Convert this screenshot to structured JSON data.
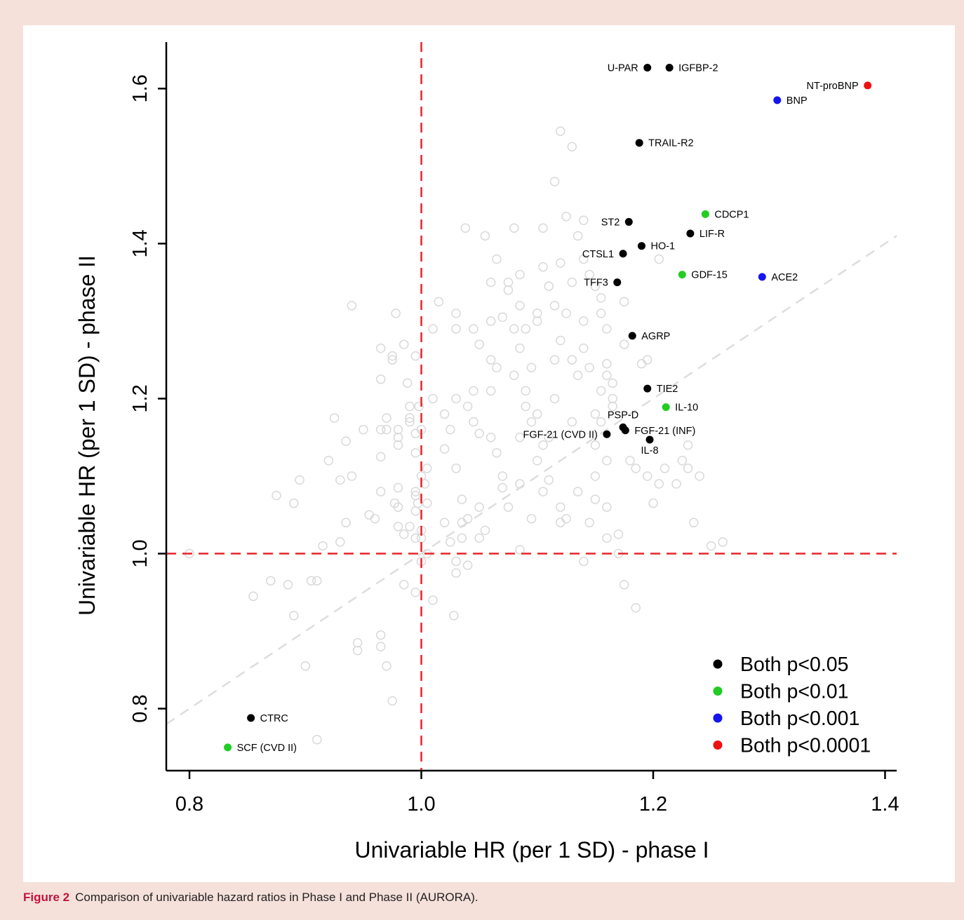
{
  "colors": {
    "page_background": "#f5e0da",
    "panel_background": "#ffffff",
    "caption_label": "#c0143c",
    "reference_line": "#e8232a",
    "diagonal": "#dddddd",
    "background_points": "#d9d9d9",
    "p05": "#000000",
    "p01": "#22cc22",
    "p001": "#1515ee",
    "p0001": "#ee1111"
  },
  "caption": {
    "label": "Figure 2",
    "text": "Comparison of univariable hazard ratios in Phase I and Phase II (AURORA)."
  },
  "chart_data": {
    "type": "scatter",
    "xlabel": "Univariable HR (per 1 SD) - phase I",
    "ylabel": "Univariable HR (per 1 SD) - phase II",
    "xlim": [
      0.78,
      1.41
    ],
    "ylim": [
      0.72,
      1.66
    ],
    "xticks": [
      {
        "value": 0.8,
        "label": "0.8"
      },
      {
        "value": 1.0,
        "label": "1.0"
      },
      {
        "value": 1.2,
        "label": "1.2"
      },
      {
        "value": 1.4,
        "label": "1.4"
      }
    ],
    "yticks": [
      {
        "value": 0.8,
        "label": "0.8"
      },
      {
        "value": 1.0,
        "label": "1.0"
      },
      {
        "value": 1.2,
        "label": "1.2"
      },
      {
        "value": 1.4,
        "label": "1.4"
      },
      {
        "value": 1.6,
        "label": "1.6"
      }
    ],
    "reference_lines": {
      "x": 1.0,
      "y": 1.0,
      "style": "dashed"
    },
    "diagonal": {
      "from": [
        0.78,
        0.78
      ],
      "to": [
        1.41,
        1.41
      ],
      "style": "dashed"
    },
    "grid": false,
    "legend": {
      "position": "bottom-right",
      "entries": [
        {
          "label": "Both p<0.05",
          "category": "p05"
        },
        {
          "label": "Both p<0.01",
          "category": "p01"
        },
        {
          "label": "Both p<0.001",
          "category": "p001"
        },
        {
          "label": "Both p<0.0001",
          "category": "p0001"
        }
      ]
    },
    "labeled_points": [
      {
        "label": "U-PAR",
        "x": 1.195,
        "y": 1.627,
        "category": "p05",
        "label_side": "left"
      },
      {
        "label": "IGFBP-2",
        "x": 1.214,
        "y": 1.627,
        "category": "p05",
        "label_side": "right"
      },
      {
        "label": "NT-proBNP",
        "x": 1.385,
        "y": 1.604,
        "category": "p0001",
        "label_side": "left"
      },
      {
        "label": "BNP",
        "x": 1.307,
        "y": 1.585,
        "category": "p001",
        "label_side": "right"
      },
      {
        "label": "TRAIL-R2",
        "x": 1.188,
        "y": 1.53,
        "category": "p05",
        "label_side": "right"
      },
      {
        "label": "CDCP1",
        "x": 1.245,
        "y": 1.438,
        "category": "p01",
        "label_side": "right"
      },
      {
        "label": "ST2",
        "x": 1.179,
        "y": 1.428,
        "category": "p05",
        "label_side": "left"
      },
      {
        "label": "LIF-R",
        "x": 1.232,
        "y": 1.413,
        "category": "p05",
        "label_side": "right"
      },
      {
        "label": "HO-1",
        "x": 1.19,
        "y": 1.397,
        "category": "p05",
        "label_side": "right"
      },
      {
        "label": "CTSL1",
        "x": 1.174,
        "y": 1.387,
        "category": "p05",
        "label_side": "left"
      },
      {
        "label": "GDF-15",
        "x": 1.225,
        "y": 1.36,
        "category": "p01",
        "label_side": "right"
      },
      {
        "label": "ACE2",
        "x": 1.294,
        "y": 1.357,
        "category": "p001",
        "label_side": "right"
      },
      {
        "label": "TFF3",
        "x": 1.169,
        "y": 1.35,
        "category": "p05",
        "label_side": "left"
      },
      {
        "label": "AGRP",
        "x": 1.182,
        "y": 1.281,
        "category": "p05",
        "label_side": "right"
      },
      {
        "label": "TIE2",
        "x": 1.195,
        "y": 1.213,
        "category": "p05",
        "label_side": "right"
      },
      {
        "label": "IL-10",
        "x": 1.211,
        "y": 1.189,
        "category": "p01",
        "label_side": "right"
      },
      {
        "label": "PSP-D",
        "x": 1.174,
        "y": 1.163,
        "category": "p05",
        "label_side": "above"
      },
      {
        "label": "FGF-21 (INF)",
        "x": 1.176,
        "y": 1.159,
        "category": "p05",
        "label_side": "right"
      },
      {
        "label": "FGF-21 (CVD II)",
        "x": 1.16,
        "y": 1.154,
        "category": "p05",
        "label_side": "left"
      },
      {
        "label": "IL-8",
        "x": 1.197,
        "y": 1.147,
        "category": "p05",
        "label_side": "below"
      },
      {
        "label": "CTRC",
        "x": 0.853,
        "y": 0.788,
        "category": "p05",
        "label_side": "right"
      },
      {
        "label": "SCF (CVD II)",
        "x": 0.833,
        "y": 0.75,
        "category": "p01",
        "label_side": "right"
      }
    ],
    "background_points": [
      [
        0.8,
        1.0
      ],
      [
        0.855,
        0.945
      ],
      [
        0.87,
        0.965
      ],
      [
        0.875,
        1.075
      ],
      [
        0.885,
        0.96
      ],
      [
        0.89,
        1.065
      ],
      [
        0.895,
        1.095
      ],
      [
        0.89,
        0.92
      ],
      [
        0.9,
        0.855
      ],
      [
        0.905,
        0.965
      ],
      [
        0.91,
        0.965
      ],
      [
        0.91,
        0.76
      ],
      [
        0.915,
        1.01
      ],
      [
        0.92,
        1.12
      ],
      [
        0.925,
        1.175
      ],
      [
        0.93,
        1.015
      ],
      [
        0.93,
        1.095
      ],
      [
        0.935,
        1.145
      ],
      [
        0.935,
        1.04
      ],
      [
        0.94,
        1.1
      ],
      [
        0.94,
        1.32
      ],
      [
        0.945,
        0.885
      ],
      [
        0.945,
        0.875
      ],
      [
        0.95,
        1.16
      ],
      [
        0.955,
        1.05
      ],
      [
        0.96,
        1.045
      ],
      [
        0.965,
        0.895
      ],
      [
        0.965,
        0.88
      ],
      [
        0.965,
        1.08
      ],
      [
        0.965,
        1.125
      ],
      [
        0.965,
        1.16
      ],
      [
        0.965,
        1.225
      ],
      [
        0.965,
        1.265
      ],
      [
        0.97,
        0.855
      ],
      [
        0.97,
        1.175
      ],
      [
        0.97,
        1.16
      ],
      [
        0.975,
        1.25
      ],
      [
        0.975,
        1.255
      ],
      [
        0.975,
        0.81
      ],
      [
        0.977,
        1.065
      ],
      [
        0.978,
        1.31
      ],
      [
        0.98,
        1.035
      ],
      [
        0.98,
        1.085
      ],
      [
        0.98,
        1.06
      ],
      [
        0.98,
        1.14
      ],
      [
        0.98,
        1.15
      ],
      [
        0.98,
        1.16
      ],
      [
        0.985,
        0.96
      ],
      [
        0.985,
        1.025
      ],
      [
        0.985,
        1.27
      ],
      [
        0.988,
        1.22
      ],
      [
        0.99,
        1.035
      ],
      [
        0.99,
        1.17
      ],
      [
        0.99,
        1.19
      ],
      [
        0.99,
        1.175
      ],
      [
        0.995,
        0.95
      ],
      [
        0.995,
        1.02
      ],
      [
        0.995,
        1.055
      ],
      [
        0.995,
        1.075
      ],
      [
        0.995,
        1.08
      ],
      [
        0.995,
        1.13
      ],
      [
        0.995,
        1.155
      ],
      [
        0.995,
        1.255
      ],
      [
        0.997,
        1.065
      ],
      [
        0.998,
        1.19
      ],
      [
        1.0,
        1.02
      ],
      [
        1.0,
        1.03
      ],
      [
        1.0,
        0.99
      ],
      [
        1.0,
        1.16
      ],
      [
        1.0,
        1.1
      ],
      [
        1.003,
        1.09
      ],
      [
        1.005,
        1.11
      ],
      [
        1.005,
        1.0
      ],
      [
        1.005,
        1.065
      ],
      [
        1.01,
        1.2
      ],
      [
        1.01,
        0.94
      ],
      [
        1.01,
        1.29
      ],
      [
        1.015,
        1.325
      ],
      [
        1.02,
        1.135
      ],
      [
        1.02,
        1.18
      ],
      [
        1.02,
        1.04
      ],
      [
        1.025,
        1.16
      ],
      [
        1.025,
        1.015
      ],
      [
        1.028,
        0.92
      ],
      [
        1.03,
        1.31
      ],
      [
        1.03,
        1.29
      ],
      [
        1.03,
        1.11
      ],
      [
        1.03,
        1.2
      ],
      [
        1.03,
        0.975
      ],
      [
        1.03,
        0.99
      ],
      [
        1.035,
        1.07
      ],
      [
        1.035,
        1.04
      ],
      [
        1.035,
        1.02
      ],
      [
        1.038,
        1.42
      ],
      [
        1.04,
        1.045
      ],
      [
        1.04,
        0.985
      ],
      [
        1.04,
        1.19
      ],
      [
        1.045,
        1.29
      ],
      [
        1.045,
        1.17
      ],
      [
        1.045,
        1.21
      ],
      [
        1.05,
        1.155
      ],
      [
        1.05,
        1.27
      ],
      [
        1.05,
        1.02
      ],
      [
        1.05,
        1.06
      ],
      [
        1.055,
        1.03
      ],
      [
        1.055,
        1.41
      ],
      [
        1.06,
        1.21
      ],
      [
        1.06,
        1.25
      ],
      [
        1.06,
        1.3
      ],
      [
        1.06,
        1.35
      ],
      [
        1.065,
        1.24
      ],
      [
        1.065,
        1.13
      ],
      [
        1.065,
        1.38
      ],
      [
        1.07,
        1.305
      ],
      [
        1.07,
        1.1
      ],
      [
        1.075,
        1.34
      ],
      [
        1.075,
        1.35
      ],
      [
        1.08,
        1.42
      ],
      [
        1.08,
        1.23
      ],
      [
        1.085,
        1.32
      ],
      [
        1.085,
        1.265
      ],
      [
        1.085,
        1.15
      ],
      [
        1.085,
        1.36
      ],
      [
        1.09,
        1.19
      ],
      [
        1.09,
        1.21
      ],
      [
        1.095,
        1.17
      ],
      [
        1.095,
        1.24
      ],
      [
        1.1,
        1.31
      ],
      [
        1.1,
        1.12
      ],
      [
        1.1,
        1.18
      ],
      [
        1.1,
        1.3
      ],
      [
        1.105,
        1.14
      ],
      [
        1.105,
        1.42
      ],
      [
        1.105,
        1.08
      ],
      [
        1.11,
        1.095
      ],
      [
        1.11,
        1.15
      ],
      [
        1.115,
        1.2
      ],
      [
        1.115,
        1.25
      ],
      [
        1.115,
        1.32
      ],
      [
        1.12,
        1.04
      ],
      [
        1.12,
        1.06
      ],
      [
        1.12,
        1.275
      ],
      [
        1.125,
        1.045
      ],
      [
        1.125,
        1.31
      ],
      [
        1.13,
        1.17
      ],
      [
        1.13,
        1.25
      ],
      [
        1.13,
        1.35
      ],
      [
        1.135,
        1.23
      ],
      [
        1.135,
        1.08
      ],
      [
        1.14,
        1.265
      ],
      [
        1.14,
        1.3
      ],
      [
        1.14,
        1.43
      ],
      [
        1.145,
        1.04
      ],
      [
        1.145,
        1.24
      ],
      [
        1.15,
        1.1
      ],
      [
        1.15,
        1.07
      ],
      [
        1.15,
        1.14
      ],
      [
        1.155,
        1.21
      ],
      [
        1.155,
        1.31
      ],
      [
        1.16,
        1.23
      ],
      [
        1.16,
        1.02
      ],
      [
        1.16,
        1.06
      ],
      [
        1.165,
        1.22
      ],
      [
        1.165,
        1.2
      ],
      [
        1.17,
        1.025
      ],
      [
        1.17,
        1.0
      ],
      [
        1.175,
        0.96
      ],
      [
        1.175,
        1.325
      ],
      [
        1.18,
        1.12
      ],
      [
        1.185,
        1.11
      ],
      [
        1.185,
        0.93
      ],
      [
        1.19,
        1.245
      ],
      [
        1.195,
        1.1
      ],
      [
        1.2,
        1.065
      ],
      [
        1.205,
        1.09
      ],
      [
        1.21,
        1.11
      ],
      [
        1.22,
        1.09
      ],
      [
        1.225,
        1.12
      ],
      [
        1.23,
        1.11
      ],
      [
        1.235,
        1.04
      ],
      [
        1.24,
        1.1
      ],
      [
        1.25,
        1.01
      ],
      [
        1.26,
        1.015
      ],
      [
        1.23,
        1.14
      ],
      [
        1.115,
        1.48
      ],
      [
        1.12,
        1.545
      ],
      [
        1.13,
        1.525
      ],
      [
        1.135,
        1.41
      ],
      [
        1.14,
        1.38
      ],
      [
        1.145,
        1.36
      ],
      [
        1.15,
        1.345
      ],
      [
        1.155,
        1.33
      ],
      [
        1.16,
        1.245
      ],
      [
        1.165,
        1.19
      ],
      [
        1.125,
        1.435
      ],
      [
        1.12,
        1.375
      ],
      [
        1.11,
        1.345
      ],
      [
        1.105,
        1.37
      ],
      [
        1.16,
        1.29
      ],
      [
        1.175,
        1.27
      ],
      [
        1.08,
        1.29
      ],
      [
        1.09,
        1.29
      ],
      [
        1.205,
        1.38
      ],
      [
        1.195,
        1.25
      ],
      [
        1.06,
        1.15
      ],
      [
        1.07,
        1.085
      ],
      [
        1.075,
        1.06
      ],
      [
        1.085,
        1.09
      ],
      [
        1.095,
        1.045
      ],
      [
        1.14,
        0.99
      ],
      [
        1.15,
        1.18
      ],
      [
        1.155,
        1.17
      ],
      [
        1.16,
        1.12
      ],
      [
        1.085,
        1.005
      ]
    ]
  }
}
